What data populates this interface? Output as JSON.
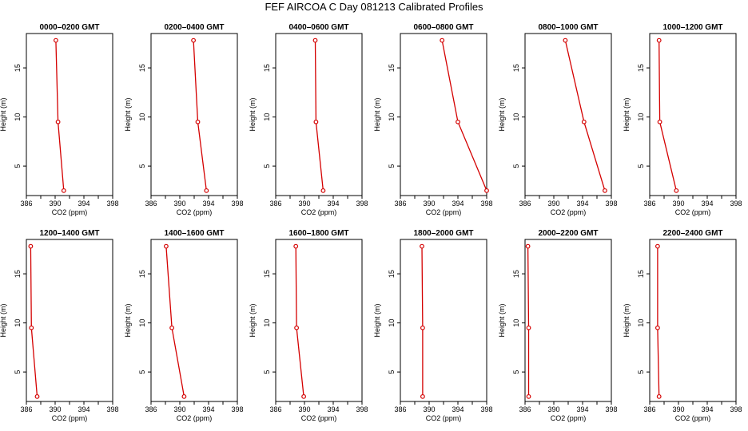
{
  "title": "FEF AIRCOA C  Day 081213  Calibrated Profiles",
  "colors": {
    "profile": "#d40000",
    "axis": "#000000"
  },
  "chart_data": [
    {
      "type": "line",
      "title": "0000–0200 GMT",
      "xlabel": "CO2 (ppm)",
      "ylabel": "Height (m)",
      "xlim": [
        386,
        398
      ],
      "ylim": [
        2,
        18.5
      ],
      "xticks": [
        "386",
        "390",
        "394",
        "398"
      ],
      "yticks": [
        "5",
        "10",
        "15"
      ],
      "grid": false,
      "x": [
        391.2,
        390.4,
        390.1
      ],
      "y": [
        2.5,
        9.5,
        17.8
      ]
    },
    {
      "type": "line",
      "title": "0200–0400 GMT",
      "xlabel": "CO2 (ppm)",
      "ylabel": "Height (m)",
      "xlim": [
        386,
        398
      ],
      "ylim": [
        2,
        18.5
      ],
      "xticks": [
        "386",
        "390",
        "394",
        "398"
      ],
      "yticks": [
        "5",
        "10",
        "15"
      ],
      "grid": false,
      "x": [
        393.7,
        392.5,
        391.9
      ],
      "y": [
        2.5,
        9.5,
        17.8
      ]
    },
    {
      "type": "line",
      "title": "0400–0600 GMT",
      "xlabel": "CO2 (ppm)",
      "ylabel": "Height (m)",
      "xlim": [
        386,
        398
      ],
      "ylim": [
        2,
        18.5
      ],
      "xticks": [
        "386",
        "390",
        "394",
        "398"
      ],
      "yticks": [
        "5",
        "10",
        "15"
      ],
      "grid": false,
      "x": [
        392.6,
        391.6,
        391.5
      ],
      "y": [
        2.5,
        9.5,
        17.8
      ]
    },
    {
      "type": "line",
      "title": "0600–0800 GMT",
      "xlabel": "CO2 (ppm)",
      "ylabel": "Height (m)",
      "xlim": [
        386,
        398
      ],
      "ylim": [
        2,
        18.5
      ],
      "xticks": [
        "386",
        "390",
        "394",
        "398"
      ],
      "yticks": [
        "5",
        "10",
        "15"
      ],
      "grid": false,
      "x": [
        398.0,
        394.0,
        391.8
      ],
      "y": [
        2.5,
        9.5,
        17.8
      ]
    },
    {
      "type": "line",
      "title": "0800–1000 GMT",
      "xlabel": "CO2 (ppm)",
      "ylabel": "Height (m)",
      "xlim": [
        386,
        398
      ],
      "ylim": [
        2,
        18.5
      ],
      "xticks": [
        "386",
        "390",
        "394",
        "398"
      ],
      "yticks": [
        "5",
        "10",
        "15"
      ],
      "grid": false,
      "x": [
        397.1,
        394.2,
        391.6
      ],
      "y": [
        2.5,
        9.5,
        17.8
      ]
    },
    {
      "type": "line",
      "title": "1000–1200 GMT",
      "xlabel": "CO2 (ppm)",
      "ylabel": "Height (m)",
      "xlim": [
        386,
        398
      ],
      "ylim": [
        2,
        18.5
      ],
      "xticks": [
        "386",
        "390",
        "394",
        "398"
      ],
      "yticks": [
        "5",
        "10",
        "15"
      ],
      "grid": false,
      "x": [
        389.7,
        387.4,
        387.3
      ],
      "y": [
        2.5,
        9.5,
        17.8
      ]
    },
    {
      "type": "line",
      "title": "1200–1400 GMT",
      "xlabel": "CO2 (ppm)",
      "ylabel": "Height (m)",
      "xlim": [
        386,
        398
      ],
      "ylim": [
        2,
        18.5
      ],
      "xticks": [
        "386",
        "390",
        "394",
        "398"
      ],
      "yticks": [
        "5",
        "10",
        "15"
      ],
      "grid": false,
      "x": [
        387.5,
        386.7,
        386.6
      ],
      "y": [
        2.5,
        9.5,
        17.8
      ]
    },
    {
      "type": "line",
      "title": "1400–1600 GMT",
      "xlabel": "CO2 (ppm)",
      "ylabel": "Height (m)",
      "xlim": [
        386,
        398
      ],
      "ylim": [
        2,
        18.5
      ],
      "xticks": [
        "386",
        "390",
        "394",
        "398"
      ],
      "yticks": [
        "5",
        "10",
        "15"
      ],
      "grid": false,
      "x": [
        390.6,
        388.9,
        388.1
      ],
      "y": [
        2.5,
        9.5,
        17.8
      ]
    },
    {
      "type": "line",
      "title": "1600–1800 GMT",
      "xlabel": "CO2 (ppm)",
      "ylabel": "Height (m)",
      "xlim": [
        386,
        398
      ],
      "ylim": [
        2,
        18.5
      ],
      "xticks": [
        "386",
        "390",
        "394",
        "398"
      ],
      "yticks": [
        "5",
        "10",
        "15"
      ],
      "grid": false,
      "x": [
        389.9,
        388.9,
        388.8
      ],
      "y": [
        2.5,
        9.5,
        17.8
      ]
    },
    {
      "type": "line",
      "title": "1800–2000 GMT",
      "xlabel": "CO2 (ppm)",
      "ylabel": "Height (m)",
      "xlim": [
        386,
        398
      ],
      "ylim": [
        2,
        18.5
      ],
      "xticks": [
        "386",
        "390",
        "394",
        "398"
      ],
      "yticks": [
        "5",
        "10",
        "15"
      ],
      "grid": false,
      "x": [
        389.1,
        389.1,
        389.0
      ],
      "y": [
        2.5,
        9.5,
        17.8
      ]
    },
    {
      "type": "line",
      "title": "2000–2200 GMT",
      "xlabel": "CO2 (ppm)",
      "ylabel": "Height (m)",
      "xlim": [
        386,
        398
      ],
      "ylim": [
        2,
        18.5
      ],
      "xticks": [
        "386",
        "390",
        "394",
        "398"
      ],
      "yticks": [
        "5",
        "10",
        "15"
      ],
      "grid": false,
      "x": [
        386.5,
        386.5,
        386.4
      ],
      "y": [
        2.5,
        9.5,
        17.8
      ]
    },
    {
      "type": "line",
      "title": "2200–2400 GMT",
      "xlabel": "CO2 (ppm)",
      "ylabel": "Height (m)",
      "xlim": [
        386,
        398
      ],
      "ylim": [
        2,
        18.5
      ],
      "xticks": [
        "386",
        "390",
        "394",
        "398"
      ],
      "yticks": [
        "5",
        "10",
        "15"
      ],
      "grid": false,
      "x": [
        387.3,
        387.1,
        387.1
      ],
      "y": [
        2.5,
        9.5,
        17.8
      ]
    }
  ]
}
